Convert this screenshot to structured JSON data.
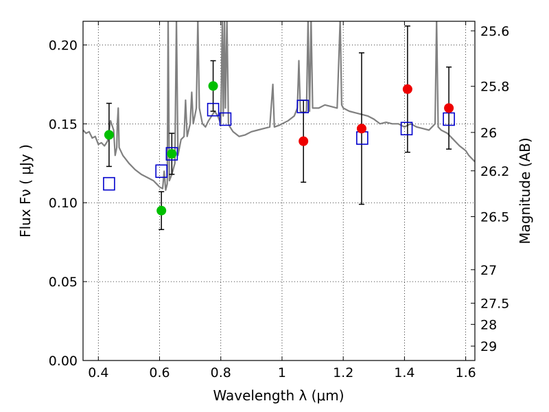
{
  "chart_data": {
    "type": "scatter",
    "title": "",
    "xlabel": "Wavelength  λ (μm)",
    "ylabel": "Flux  Fν  ( μJy )",
    "y2label": "Magnitude (AB)",
    "xlim": [
      0.35,
      1.63
    ],
    "ylim": [
      0.0,
      0.215
    ],
    "grid": true,
    "legend": "none",
    "x_ticks": [
      0.4,
      0.6,
      0.8,
      1.0,
      1.2,
      1.4,
      1.6
    ],
    "x_tick_labels": [
      "0.4",
      "0.6",
      "0.8",
      "1",
      "1.2",
      "1.4",
      "1.6"
    ],
    "y_ticks": [
      0.0,
      0.05,
      0.1,
      0.15,
      0.2
    ],
    "y_tick_labels": [
      "0.00",
      "0.05",
      "0.10",
      "0.15",
      "0.20"
    ],
    "y2_ticks": [
      {
        "label": "25.6",
        "mag": 25.6
      },
      {
        "label": "25.8",
        "mag": 25.8
      },
      {
        "label": "26",
        "mag": 26.0
      },
      {
        "label": "26.2",
        "mag": 26.2
      },
      {
        "label": "26.5",
        "mag": 26.5
      },
      {
        "label": "27",
        "mag": 27.0
      },
      {
        "label": "27.5",
        "mag": 27.5
      },
      {
        "label": "28",
        "mag": 28.0
      },
      {
        "label": "29",
        "mag": 29.0
      }
    ],
    "colors": {
      "green": "#00bf00",
      "red": "#ee0000",
      "model_box": "#0000cc",
      "sed": "#808080",
      "errorbar": "#000000"
    },
    "series": [
      {
        "marker": "circle",
        "color": "green",
        "points": [
          {
            "x": 0.435,
            "y": 0.143,
            "err_lo": 0.02,
            "err_hi": 0.02
          },
          {
            "x": 0.606,
            "y": 0.095,
            "err_lo": 0.012,
            "err_hi": 0.012
          },
          {
            "x": 0.64,
            "y": 0.131,
            "err_lo": 0.013,
            "err_hi": 0.013
          },
          {
            "x": 0.775,
            "y": 0.174,
            "err_lo": 0.016,
            "err_hi": 0.016
          }
        ]
      },
      {
        "marker": "circle",
        "color": "red",
        "points": [
          {
            "x": 1.07,
            "y": 0.139,
            "err_lo": 0.026,
            "err_hi": 0.026
          },
          {
            "x": 1.26,
            "y": 0.147,
            "err_lo": 0.048,
            "err_hi": 0.048
          },
          {
            "x": 1.41,
            "y": 0.172,
            "err_lo": 0.04,
            "err_hi": 0.04
          },
          {
            "x": 1.545,
            "y": 0.16,
            "err_lo": 0.026,
            "err_hi": 0.026
          }
        ]
      },
      {
        "marker": "open-square",
        "color": "model_box",
        "points": [
          {
            "x": 0.435,
            "y": 0.112
          },
          {
            "x": 0.606,
            "y": 0.12
          },
          {
            "x": 0.64,
            "y": 0.131
          },
          {
            "x": 0.775,
            "y": 0.159
          },
          {
            "x": 0.815,
            "y": 0.153
          },
          {
            "x": 1.068,
            "y": 0.161
          },
          {
            "x": 1.262,
            "y": 0.141
          },
          {
            "x": 1.407,
            "y": 0.147
          },
          {
            "x": 1.545,
            "y": 0.153
          }
        ]
      },
      {
        "marker": "line",
        "color": "sed",
        "points": [
          [
            0.35,
            0.146
          ],
          [
            0.36,
            0.144
          ],
          [
            0.37,
            0.145
          ],
          [
            0.38,
            0.141
          ],
          [
            0.39,
            0.142
          ],
          [
            0.4,
            0.137
          ],
          [
            0.41,
            0.138
          ],
          [
            0.42,
            0.136
          ],
          [
            0.43,
            0.139
          ],
          [
            0.44,
            0.152
          ],
          [
            0.45,
            0.146
          ],
          [
            0.455,
            0.13
          ],
          [
            0.46,
            0.135
          ],
          [
            0.462,
            0.15
          ],
          [
            0.465,
            0.16
          ],
          [
            0.468,
            0.135
          ],
          [
            0.48,
            0.13
          ],
          [
            0.5,
            0.125
          ],
          [
            0.52,
            0.121
          ],
          [
            0.54,
            0.118
          ],
          [
            0.56,
            0.116
          ],
          [
            0.58,
            0.114
          ],
          [
            0.59,
            0.112
          ],
          [
            0.6,
            0.11
          ],
          [
            0.61,
            0.109
          ],
          [
            0.615,
            0.12
          ],
          [
            0.62,
            0.108
          ],
          [
            0.625,
            0.112
          ],
          [
            0.628,
            0.216
          ],
          [
            0.632,
            0.114
          ],
          [
            0.64,
            0.118
          ],
          [
            0.65,
            0.125
          ],
          [
            0.655,
            0.216
          ],
          [
            0.66,
            0.13
          ],
          [
            0.67,
            0.14
          ],
          [
            0.68,
            0.142
          ],
          [
            0.685,
            0.165
          ],
          [
            0.69,
            0.142
          ],
          [
            0.7,
            0.15
          ],
          [
            0.705,
            0.17
          ],
          [
            0.71,
            0.15
          ],
          [
            0.72,
            0.16
          ],
          [
            0.725,
            0.216
          ],
          [
            0.73,
            0.16
          ],
          [
            0.74,
            0.15
          ],
          [
            0.75,
            0.148
          ],
          [
            0.76,
            0.152
          ],
          [
            0.77,
            0.155
          ],
          [
            0.78,
            0.158
          ],
          [
            0.79,
            0.155
          ],
          [
            0.8,
            0.15
          ],
          [
            0.805,
            0.216
          ],
          [
            0.808,
            0.155
          ],
          [
            0.812,
            0.216
          ],
          [
            0.815,
            0.16
          ],
          [
            0.82,
            0.216
          ],
          [
            0.825,
            0.15
          ],
          [
            0.83,
            0.148
          ],
          [
            0.84,
            0.145
          ],
          [
            0.86,
            0.142
          ],
          [
            0.88,
            0.143
          ],
          [
            0.9,
            0.145
          ],
          [
            0.92,
            0.146
          ],
          [
            0.94,
            0.147
          ],
          [
            0.96,
            0.148
          ],
          [
            0.97,
            0.175
          ],
          [
            0.975,
            0.148
          ],
          [
            0.99,
            0.149
          ],
          [
            1.0,
            0.15
          ],
          [
            1.02,
            0.152
          ],
          [
            1.04,
            0.155
          ],
          [
            1.05,
            0.16
          ],
          [
            1.055,
            0.19
          ],
          [
            1.06,
            0.158
          ],
          [
            1.07,
            0.157
          ],
          [
            1.08,
            0.158
          ],
          [
            1.085,
            0.216
          ],
          [
            1.09,
            0.158
          ],
          [
            1.095,
            0.216
          ],
          [
            1.1,
            0.16
          ],
          [
            1.12,
            0.16
          ],
          [
            1.14,
            0.162
          ],
          [
            1.16,
            0.161
          ],
          [
            1.18,
            0.16
          ],
          [
            1.19,
            0.216
          ],
          [
            1.195,
            0.162
          ],
          [
            1.2,
            0.16
          ],
          [
            1.22,
            0.158
          ],
          [
            1.24,
            0.157
          ],
          [
            1.26,
            0.156
          ],
          [
            1.28,
            0.155
          ],
          [
            1.3,
            0.153
          ],
          [
            1.32,
            0.15
          ],
          [
            1.34,
            0.151
          ],
          [
            1.36,
            0.15
          ],
          [
            1.38,
            0.15
          ],
          [
            1.4,
            0.148
          ],
          [
            1.42,
            0.15
          ],
          [
            1.44,
            0.148
          ],
          [
            1.46,
            0.147
          ],
          [
            1.48,
            0.146
          ],
          [
            1.5,
            0.15
          ],
          [
            1.505,
            0.216
          ],
          [
            1.51,
            0.148
          ],
          [
            1.52,
            0.146
          ],
          [
            1.54,
            0.144
          ],
          [
            1.56,
            0.14
          ],
          [
            1.58,
            0.136
          ],
          [
            1.6,
            0.133
          ],
          [
            1.61,
            0.13
          ],
          [
            1.62,
            0.128
          ],
          [
            1.63,
            0.126
          ]
        ]
      }
    ]
  }
}
